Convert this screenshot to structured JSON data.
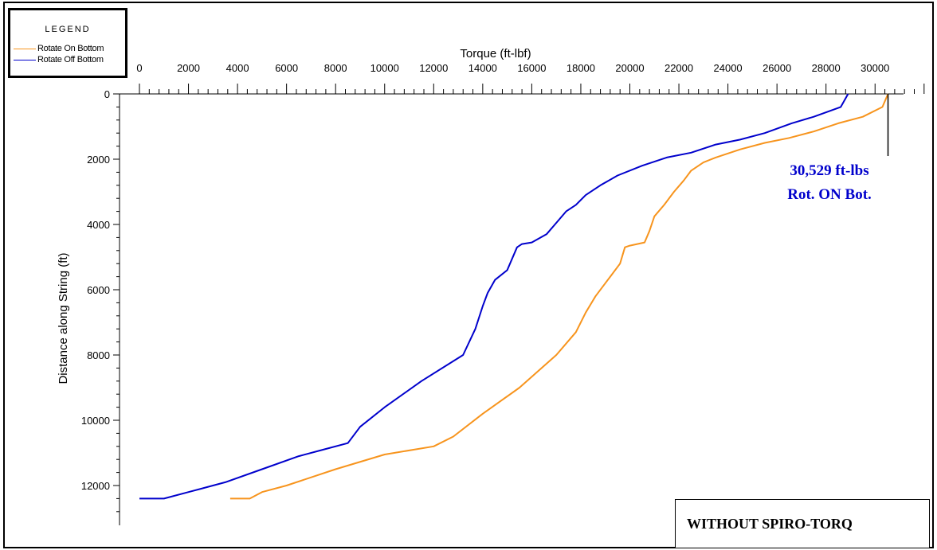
{
  "chart_data": {
    "type": "line",
    "xlabel": "Torque (ft-lbf)",
    "ylabel": "Distance along String (ft)",
    "xlim": [
      0,
      32000
    ],
    "ylim": [
      0,
      13000
    ],
    "y_inverted": true,
    "x_axis_position": "top",
    "x_ticks": [
      "0",
      "2000",
      "4000",
      "6000",
      "8000",
      "10000",
      "12000",
      "14000",
      "16000",
      "18000",
      "20000",
      "22000",
      "24000",
      "26000",
      "28000",
      "30000"
    ],
    "y_ticks": [
      "0",
      "2000",
      "4000",
      "6000",
      "8000",
      "10000",
      "12000"
    ],
    "grid": false,
    "legend": {
      "title": "LEGEND",
      "position": "top-left",
      "entries": [
        {
          "label": "Rotate On Bottom",
          "color": "#f7941d"
        },
        {
          "label": "Rotate Off Bottom",
          "color": "#0000cc"
        }
      ]
    },
    "series": [
      {
        "name": "Rotate On Bottom",
        "color": "#f7941d",
        "points": [
          [
            30529,
            0
          ],
          [
            30300,
            400
          ],
          [
            29500,
            700
          ],
          [
            28500,
            900
          ],
          [
            27500,
            1150
          ],
          [
            26500,
            1350
          ],
          [
            25500,
            1500
          ],
          [
            24500,
            1700
          ],
          [
            23500,
            1950
          ],
          [
            23000,
            2100
          ],
          [
            22500,
            2350
          ],
          [
            22200,
            2650
          ],
          [
            21800,
            3000
          ],
          [
            21400,
            3400
          ],
          [
            21000,
            3750
          ],
          [
            20800,
            4200
          ],
          [
            20600,
            4550
          ],
          [
            20000,
            4650
          ],
          [
            19800,
            4700
          ],
          [
            19600,
            5200
          ],
          [
            19200,
            5600
          ],
          [
            19000,
            5800
          ],
          [
            18600,
            6200
          ],
          [
            18200,
            6700
          ],
          [
            17800,
            7300
          ],
          [
            17000,
            8000
          ],
          [
            15500,
            9000
          ],
          [
            14000,
            9800
          ],
          [
            12800,
            10500
          ],
          [
            12000,
            10800
          ],
          [
            10000,
            11050
          ],
          [
            8000,
            11500
          ],
          [
            6000,
            12000
          ],
          [
            5000,
            12200
          ],
          [
            4500,
            12400
          ],
          [
            3700,
            12400
          ]
        ]
      },
      {
        "name": "Rotate Off Bottom",
        "color": "#0000cc",
        "points": [
          [
            28900,
            0
          ],
          [
            28600,
            400
          ],
          [
            27500,
            700
          ],
          [
            26600,
            900
          ],
          [
            25500,
            1200
          ],
          [
            24500,
            1400
          ],
          [
            23500,
            1550
          ],
          [
            22500,
            1800
          ],
          [
            21500,
            1950
          ],
          [
            20500,
            2200
          ],
          [
            19500,
            2500
          ],
          [
            18800,
            2800
          ],
          [
            18200,
            3100
          ],
          [
            17800,
            3400
          ],
          [
            17400,
            3600
          ],
          [
            17000,
            3950
          ],
          [
            16600,
            4300
          ],
          [
            16000,
            4550
          ],
          [
            15600,
            4600
          ],
          [
            15400,
            4700
          ],
          [
            15000,
            5400
          ],
          [
            14500,
            5700
          ],
          [
            14200,
            6100
          ],
          [
            14000,
            6500
          ],
          [
            13700,
            7200
          ],
          [
            13200,
            8000
          ],
          [
            11500,
            8800
          ],
          [
            10000,
            9600
          ],
          [
            9000,
            10200
          ],
          [
            8500,
            10700
          ],
          [
            7500,
            10900
          ],
          [
            6500,
            11100
          ],
          [
            5000,
            11500
          ],
          [
            3500,
            11900
          ],
          [
            2000,
            12200
          ],
          [
            1000,
            12400
          ],
          [
            0,
            12400
          ]
        ]
      }
    ],
    "annotations": [
      {
        "text_line1": "30,529 ft-lbs",
        "text_line2": "Rot. ON Bot.",
        "x": 30529,
        "y": 0,
        "color": "#0000cc"
      }
    ],
    "note": "WITHOUT SPIRO-TORQ"
  }
}
